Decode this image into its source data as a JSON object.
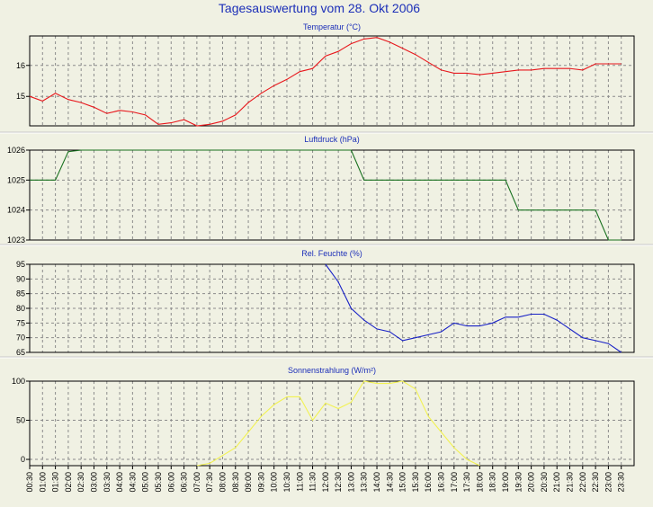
{
  "title": "Tagesauswertung vom 28. Okt 2006",
  "colors": {
    "background": "#f0f1e3",
    "title": "#1c2fb8",
    "grid": "#8c8c8c",
    "frame": "#000000"
  },
  "x_tick_labels": [
    "00:30",
    "01:00",
    "01:30",
    "02:00",
    "02:30",
    "03:00",
    "03:30",
    "04:00",
    "04:30",
    "05:00",
    "05:30",
    "06:00",
    "06:30",
    "07:00",
    "07:30",
    "08:00",
    "08:30",
    "09:00",
    "09:30",
    "10:00",
    "10:30",
    "11:00",
    "11:30",
    "12:00",
    "12:30",
    "13:00",
    "13:30",
    "14:00",
    "14:30",
    "15:00",
    "15:30",
    "16:00",
    "16:30",
    "17:00",
    "17:30",
    "18:00",
    "18:30",
    "19:00",
    "19:30",
    "20:00",
    "20:30",
    "21:00",
    "21:30",
    "22:00",
    "22:30",
    "23:00",
    "23:30"
  ],
  "chart_data": [
    {
      "type": "line",
      "title": "Temperatur (°C)",
      "color": "#e8171c",
      "ylim": [
        14.05,
        16.95
      ],
      "yticks": [
        15,
        16
      ],
      "grid": true,
      "x": [
        "00:30",
        "01:00",
        "01:30",
        "02:00",
        "02:30",
        "03:00",
        "03:30",
        "04:00",
        "04:30",
        "05:00",
        "05:30",
        "06:00",
        "06:30",
        "07:00",
        "07:30",
        "08:00",
        "08:30",
        "09:00",
        "09:30",
        "10:00",
        "10:30",
        "11:00",
        "11:30",
        "12:00",
        "12:30",
        "13:00",
        "13:30",
        "14:00",
        "14:30",
        "15:00",
        "15:30",
        "16:00",
        "16:30",
        "17:00",
        "17:30",
        "18:00",
        "18:30",
        "19:00",
        "19:30",
        "20:00",
        "20:30",
        "21:00",
        "21:30",
        "22:00",
        "22:30",
        "23:00",
        "23:30"
      ],
      "values": [
        15.0,
        14.85,
        15.1,
        14.9,
        14.8,
        14.65,
        14.45,
        14.55,
        14.5,
        14.4,
        14.1,
        14.15,
        14.25,
        14.05,
        14.1,
        14.2,
        14.4,
        14.8,
        15.1,
        15.35,
        15.55,
        15.8,
        15.9,
        16.3,
        16.45,
        16.7,
        16.85,
        16.9,
        16.75,
        16.55,
        16.35,
        16.1,
        15.85,
        15.75,
        15.75,
        15.7,
        15.75,
        15.8,
        15.85,
        15.85,
        15.9,
        15.9,
        15.9,
        15.85,
        16.05,
        16.05,
        16.05
      ]
    },
    {
      "type": "line",
      "title": "Luftdruck (hPa)",
      "color": "#17701e",
      "ylim": [
        1023,
        1026
      ],
      "yticks": [
        1023,
        1024,
        1025,
        1026
      ],
      "grid": true,
      "x": [
        "00:30",
        "01:00",
        "01:30",
        "02:00",
        "02:30",
        "03:00",
        "03:30",
        "04:00",
        "04:30",
        "05:00",
        "05:30",
        "06:00",
        "06:30",
        "07:00",
        "07:30",
        "08:00",
        "08:30",
        "09:00",
        "09:30",
        "10:00",
        "10:30",
        "11:00",
        "11:30",
        "12:00",
        "12:30",
        "13:00",
        "13:30",
        "14:00",
        "14:30",
        "15:00",
        "15:30",
        "16:00",
        "16:30",
        "17:00",
        "17:30",
        "18:00",
        "18:30",
        "19:00",
        "19:30",
        "20:00",
        "20:30",
        "21:00",
        "21:30",
        "22:00",
        "22:30",
        "23:00",
        "23:30"
      ],
      "values": [
        1025,
        1025,
        1025,
        1025.95,
        1026,
        1026,
        1026,
        1026,
        1026,
        1026,
        1026,
        1026,
        1026,
        1026,
        1026,
        1026,
        1026,
        1026,
        1026,
        1026,
        1026,
        1026,
        1026,
        1026,
        1026,
        1026,
        1025,
        1025,
        1025,
        1025,
        1025,
        1025,
        1025,
        1025,
        1025,
        1025,
        1025,
        1025,
        1024,
        1024,
        1024,
        1024,
        1024,
        1024,
        1024,
        1023,
        1023
      ]
    },
    {
      "type": "line",
      "title": "Rel. Feuchte (%)",
      "color": "#1821c6",
      "ylim": [
        65,
        95
      ],
      "yticks": [
        65,
        70,
        75,
        80,
        85,
        90,
        95
      ],
      "grid": true,
      "x": [
        "12:00",
        "12:30",
        "13:00",
        "13:30",
        "14:00",
        "14:30",
        "15:00",
        "15:30",
        "16:00",
        "16:30",
        "17:00",
        "17:30",
        "18:00",
        "18:30",
        "19:00",
        "19:30",
        "20:00",
        "20:30",
        "21:00",
        "21:30",
        "22:00",
        "22:30",
        "23:00",
        "23:30"
      ],
      "values": [
        95,
        89,
        80,
        76,
        73,
        72,
        69,
        70,
        71,
        72,
        75,
        74,
        74,
        75,
        77,
        77,
        78,
        78,
        76,
        73,
        70,
        69,
        68,
        65
      ]
    },
    {
      "type": "line",
      "title": "Sonnenstrahlung (W/m²)",
      "color": "#f2f251",
      "ylim": [
        -8,
        100
      ],
      "yticks": [
        0,
        50,
        100
      ],
      "grid": true,
      "x": [
        "07:00",
        "07:30",
        "08:00",
        "08:30",
        "09:00",
        "09:30",
        "10:00",
        "10:30",
        "11:00",
        "11:30",
        "12:00",
        "12:30",
        "13:00",
        "13:30",
        "14:00",
        "14:30",
        "15:00",
        "15:30",
        "16:00",
        "16:30",
        "17:00",
        "17:30",
        "18:00"
      ],
      "values": [
        -8,
        -5,
        5,
        15,
        35,
        55,
        70,
        80,
        80,
        50,
        72,
        65,
        73,
        100,
        97,
        97,
        100,
        90,
        55,
        35,
        15,
        0,
        -8
      ]
    }
  ]
}
